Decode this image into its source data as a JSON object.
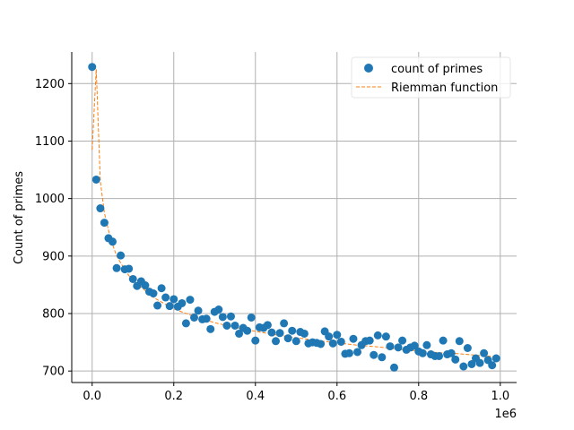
{
  "chart_data": {
    "type": "scatter",
    "title": "",
    "xlabel": "",
    "ylabel": "Count of primes",
    "x_offset_label": "1e6",
    "xlim": [
      -50000,
      1040000
    ],
    "ylim": [
      680,
      1255
    ],
    "x_ticks": [
      0,
      200000,
      400000,
      600000,
      800000,
      1000000
    ],
    "x_tick_labels": [
      "0.0",
      "0.2",
      "0.4",
      "0.6",
      "0.8",
      "1.0"
    ],
    "y_ticks": [
      700,
      800,
      900,
      1000,
      1100,
      1200
    ],
    "y_tick_labels": [
      "700",
      "800",
      "900",
      "1000",
      "1100",
      "1200"
    ],
    "grid": true,
    "legend_position": "top-right",
    "series": [
      {
        "name": "count of primes",
        "kind": "scatter",
        "color": "#1f77b4",
        "x": [
          0,
          10000,
          20000,
          30000,
          40000,
          50000,
          60000,
          70000,
          80000,
          90000,
          100000,
          110000,
          120000,
          130000,
          140000,
          150000,
          160000,
          170000,
          180000,
          190000,
          200000,
          210000,
          220000,
          230000,
          240000,
          250000,
          260000,
          270000,
          280000,
          290000,
          300000,
          310000,
          320000,
          330000,
          340000,
          350000,
          360000,
          370000,
          380000,
          390000,
          400000,
          410000,
          420000,
          430000,
          440000,
          450000,
          460000,
          470000,
          480000,
          490000,
          500000,
          510000,
          520000,
          530000,
          540000,
          550000,
          560000,
          570000,
          580000,
          590000,
          600000,
          610000,
          620000,
          630000,
          640000,
          650000,
          660000,
          670000,
          680000,
          690000,
          700000,
          710000,
          720000,
          730000,
          740000,
          750000,
          760000,
          770000,
          780000,
          790000,
          800000,
          810000,
          820000,
          830000,
          840000,
          850000,
          860000,
          870000,
          880000,
          890000,
          900000,
          910000,
          920000,
          930000,
          940000,
          950000,
          960000,
          970000,
          980000,
          990000
        ],
        "y": [
          1229,
          1033,
          983,
          958,
          931,
          925,
          879,
          901,
          877,
          878,
          860,
          848,
          856,
          849,
          838,
          835,
          814,
          844,
          828,
          813,
          825,
          812,
          818,
          783,
          824,
          793,
          805,
          790,
          791,
          773,
          803,
          807,
          794,
          779,
          795,
          779,
          765,
          775,
          770,
          793,
          753,
          776,
          775,
          780,
          767,
          752,
          766,
          783,
          757,
          770,
          752,
          768,
          765,
          748,
          750,
          749,
          747,
          769,
          760,
          748,
          763,
          751,
          730,
          731,
          756,
          733,
          745,
          752,
          753,
          728,
          762,
          724,
          760,
          743,
          706,
          741,
          753,
          737,
          741,
          744,
          734,
          731,
          745,
          729,
          726,
          726,
          753,
          729,
          731,
          720,
          752,
          708,
          740,
          712,
          722,
          714,
          731,
          719,
          710,
          722
        ]
      },
      {
        "name": "Riemman function",
        "kind": "line",
        "style": "dashed",
        "color": "#ff7f0e",
        "x": [
          0,
          10000,
          20000,
          30000,
          40000,
          50000,
          60000,
          70000,
          80000,
          90000,
          100000,
          150000,
          200000,
          250000,
          300000,
          350000,
          400000,
          450000,
          500000,
          550000,
          600000,
          650000,
          700000,
          750000,
          800000,
          850000,
          900000,
          950000,
          990000
        ],
        "y": [
          1085,
          1225,
          1030,
          975,
          945,
          920,
          900,
          888,
          876,
          866,
          858,
          828,
          808,
          795,
          784,
          776,
          769,
          763,
          758,
          753,
          749,
          745,
          742,
          738,
          735,
          732,
          730,
          727,
          725
        ]
      }
    ]
  }
}
